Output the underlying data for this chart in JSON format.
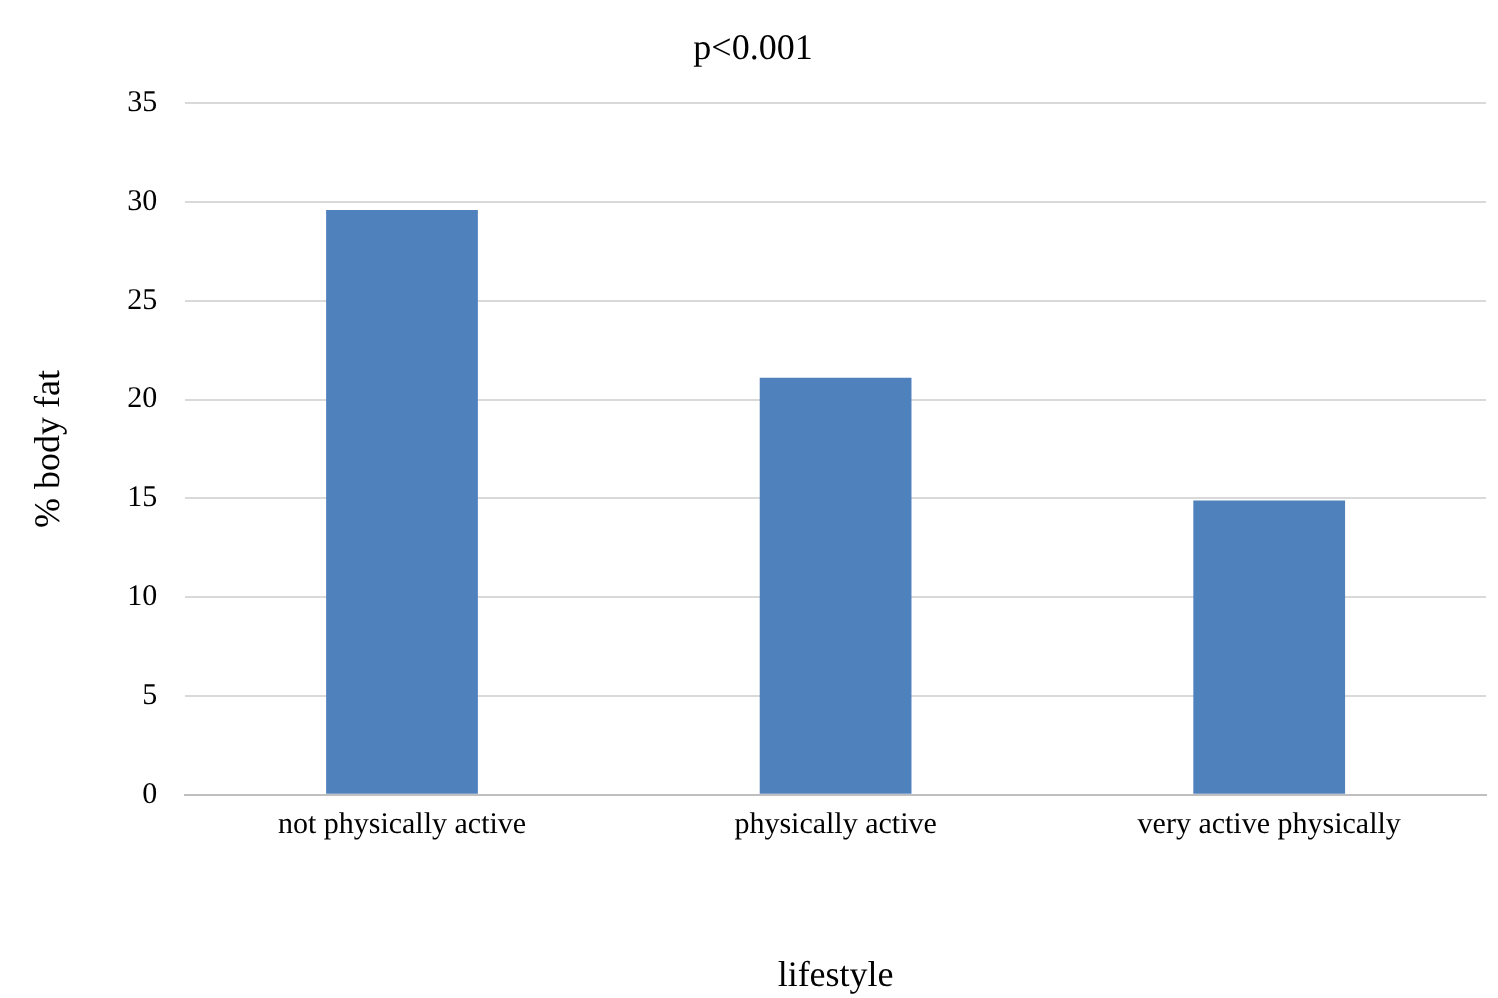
{
  "chart_data": {
    "type": "bar",
    "title": "p<0.001",
    "xlabel": "lifestyle",
    "ylabel": "% body fat",
    "categories": [
      "not physically active",
      "physically active",
      "very active physically"
    ],
    "values": [
      29.6,
      21.1,
      14.9
    ],
    "color": "#4f81bd",
    "ylim": [
      0,
      35
    ],
    "yticks": [
      0,
      5,
      10,
      15,
      20,
      25,
      30,
      35
    ],
    "grid": "y",
    "legend": false
  }
}
